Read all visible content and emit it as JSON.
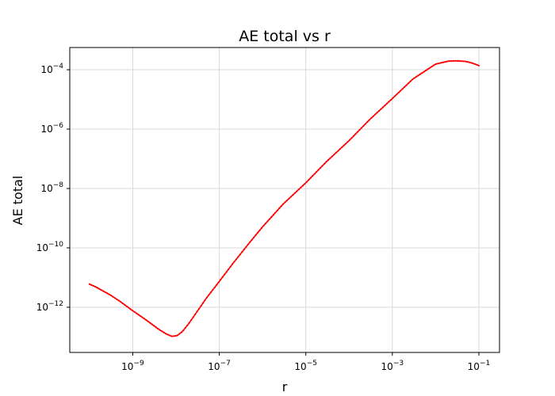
{
  "chart_data": {
    "type": "line",
    "title": "AE total vs r",
    "xlabel": "r",
    "ylabel": "AE total",
    "xscale": "log",
    "yscale": "log",
    "xlim": [
      3.5e-11,
      0.3
    ],
    "ylim": [
      3e-14,
      0.00056
    ],
    "grid": true,
    "line_color": "#ff0000",
    "x_ticks": [
      {
        "value": 1e-09,
        "base": "10",
        "exp": "−9"
      },
      {
        "value": 1e-07,
        "base": "10",
        "exp": "−7"
      },
      {
        "value": 1e-05,
        "base": "10",
        "exp": "−5"
      },
      {
        "value": 0.001,
        "base": "10",
        "exp": "−3"
      },
      {
        "value": 0.1,
        "base": "10",
        "exp": "−1"
      }
    ],
    "y_ticks": [
      {
        "value": 1e-12,
        "base": "10",
        "exp": "−12"
      },
      {
        "value": 1e-10,
        "base": "10",
        "exp": "−10"
      },
      {
        "value": 1e-08,
        "base": "10",
        "exp": "−8"
      },
      {
        "value": 1e-06,
        "base": "10",
        "exp": "−6"
      },
      {
        "value": 0.0001,
        "base": "10",
        "exp": "−4"
      }
    ],
    "series": [
      {
        "x": [
          1e-10,
          1.41e-10,
          2e-10,
          3e-10,
          5e-10,
          1e-09,
          2e-09,
          4e-09,
          6e-09,
          8e-09,
          1.05e-08,
          1.4e-08,
          2e-08,
          3e-08,
          5e-08,
          1e-07,
          2e-07,
          5e-07,
          1e-06,
          3e-06,
          1e-05,
          3e-05,
          0.0001,
          0.0003,
          0.001,
          0.003,
          0.01,
          0.02,
          0.03,
          0.05,
          0.07,
          0.1
        ],
        "y": [
          6e-12,
          4.8e-12,
          3.6e-12,
          2.6e-12,
          1.6e-12,
          7.6e-13,
          3.8e-13,
          1.8e-13,
          1.25e-13,
          1.05e-13,
          1.1e-13,
          1.5e-13,
          2.9e-13,
          6.8e-13,
          2e-12,
          7.4e-12,
          2.8e-11,
          1.5e-10,
          5.1e-10,
          3e-09,
          1.55e-08,
          8e-08,
          4.1e-07,
          2.1e-06,
          1.07e-05,
          4.9e-05,
          0.000155,
          0.000195,
          0.0002,
          0.00019,
          0.000168,
          0.000138
        ]
      }
    ]
  }
}
